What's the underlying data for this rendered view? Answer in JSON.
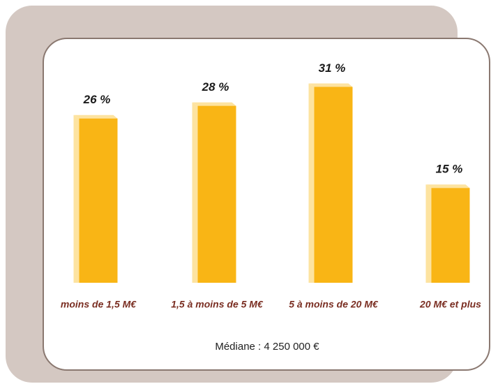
{
  "chart_data": {
    "type": "bar",
    "categories": [
      "moins de 1,5 M€",
      "1,5 à moins de 5 M€",
      "5 à moins de 20 M€",
      "20 M€ et plus"
    ],
    "values": [
      26,
      28,
      31,
      15
    ],
    "value_labels": [
      "26 %",
      "28 %",
      "31 %",
      "15 %"
    ],
    "color": "#f9b515",
    "note": "Médiane : 4 250 000 €"
  }
}
